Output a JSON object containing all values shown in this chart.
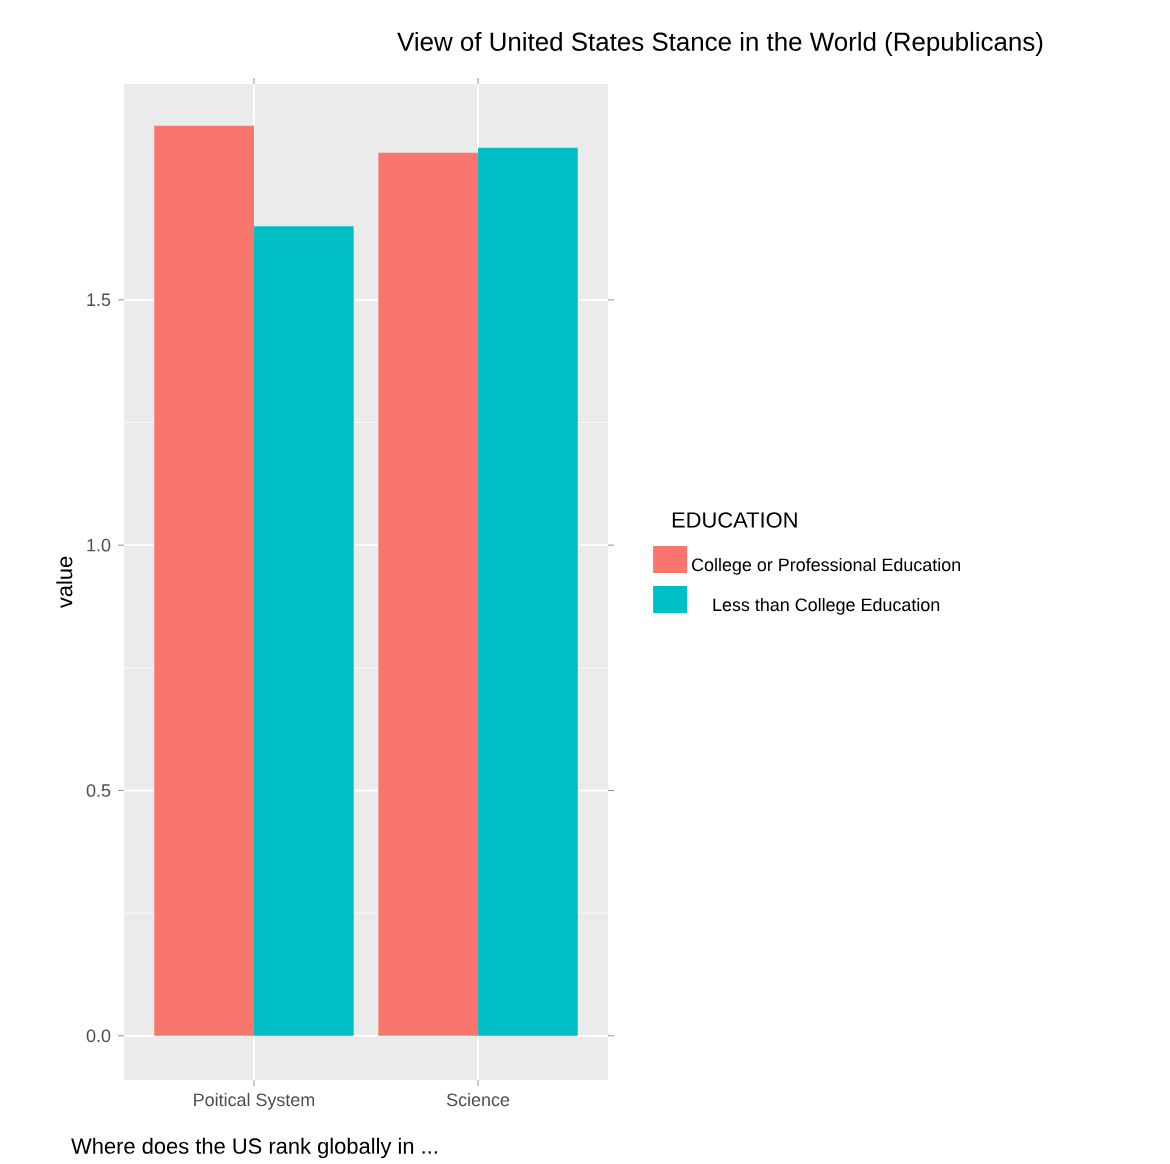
{
  "chart_data": {
    "type": "bar",
    "title": "View of United States Stance in the World (Republicans)",
    "xlabel": "Where does the US rank globally in ...",
    "ylabel": "value",
    "legend_title": "EDUCATION",
    "categories": [
      "Poitical System",
      "Science"
    ],
    "series": [
      {
        "name": "College or Professional Education",
        "color": "#f8766d",
        "values": [
          1.855,
          1.8
        ]
      },
      {
        "name": "Less than College Education",
        "color": "#00bfc4",
        "values": [
          1.65,
          1.81
        ]
      }
    ],
    "ylim": [
      -0.09,
      1.94
    ],
    "yticks": [
      {
        "value": 0,
        "label": "0.0"
      },
      {
        "value": 0.5,
        "label": "0.5"
      },
      {
        "value": 1,
        "label": "1.0"
      },
      {
        "value": 1.5,
        "label": "1.5"
      }
    ],
    "grid": true,
    "legend": "right"
  }
}
